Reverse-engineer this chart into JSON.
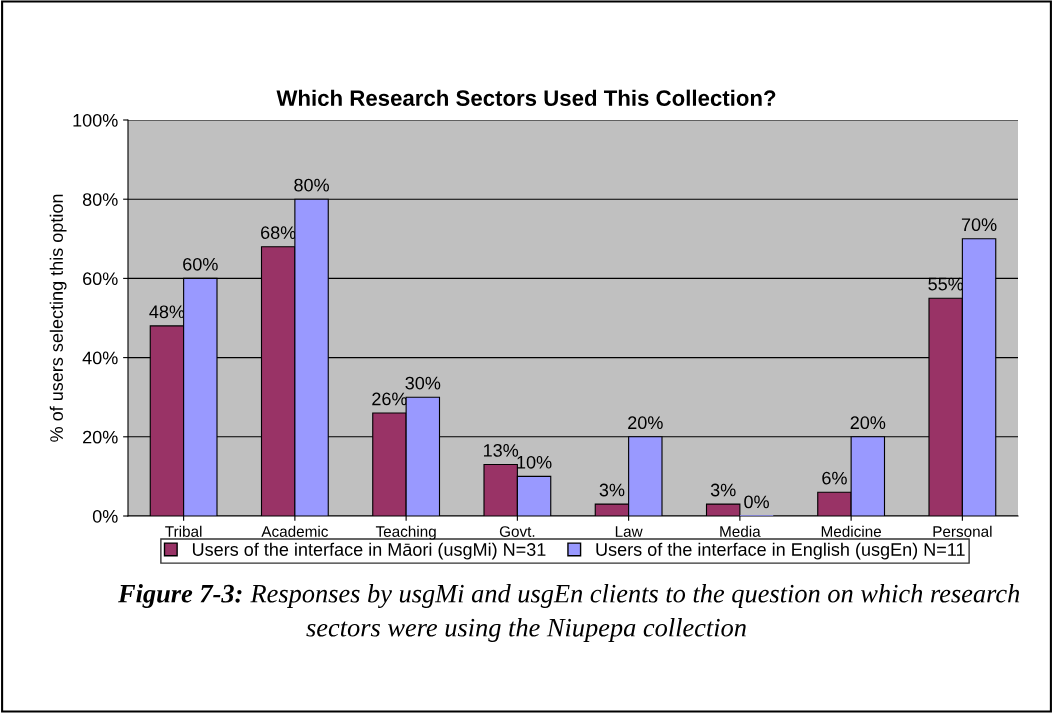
{
  "chart_data": {
    "type": "bar",
    "title": "Which Research Sectors Used This Collection?",
    "ylabel": "% of users selecting this option",
    "categories": [
      "Tribal",
      "Academic",
      "Teaching",
      "Govt.",
      "Law",
      "Media",
      "Medicine",
      "Personal"
    ],
    "series": [
      {
        "name": "Users of the interface in Māori (usgMi) N=31",
        "color": "#993366",
        "values": [
          48,
          68,
          26,
          13,
          3,
          3,
          6,
          55
        ],
        "value_labels": [
          "48%",
          "68%",
          "26%",
          "13%",
          "3%",
          "3%",
          "6%",
          "55%"
        ]
      },
      {
        "name": "Users of the interface in English (usgEn) N=11",
        "color": "#9999ff",
        "values": [
          60,
          80,
          30,
          10,
          20,
          0,
          20,
          70
        ],
        "value_labels": [
          "60%",
          "80%",
          "30%",
          "10%",
          "20%",
          "0%",
          "20%",
          "70%"
        ]
      }
    ],
    "ylim": [
      0,
      100
    ],
    "yticks": [
      {
        "value": 0,
        "label": "0%"
      },
      {
        "value": 20,
        "label": "20%"
      },
      {
        "value": 40,
        "label": "40%"
      },
      {
        "value": 60,
        "label": "60%"
      },
      {
        "value": 80,
        "label": "80%"
      },
      {
        "value": 100,
        "label": "100%"
      }
    ],
    "grid": "y",
    "legend": "bottom",
    "annotations": [
      "Figure 7-3:",
      "Responses by usgMi and usgEn clients to the question on which research sectors were using the Niupepa collection"
    ]
  }
}
